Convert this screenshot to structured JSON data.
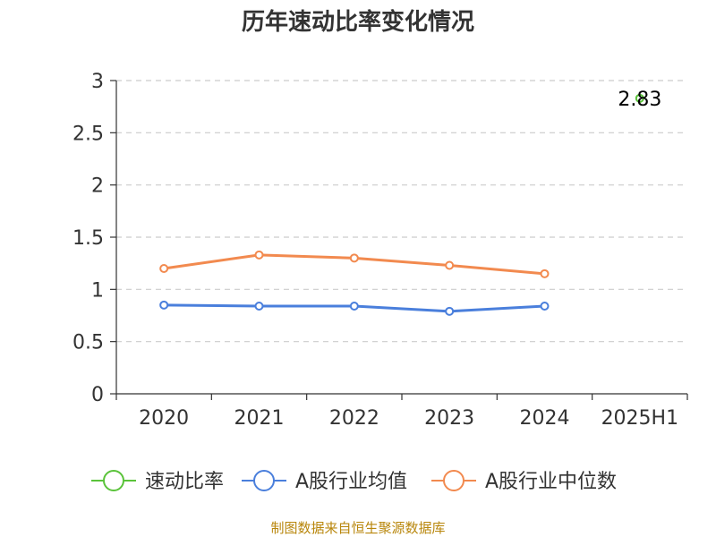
{
  "chart_data": {
    "type": "line",
    "title": "历年速动比率变化情况",
    "categories": [
      "2020",
      "2021",
      "2022",
      "2023",
      "2024",
      "2025H1"
    ],
    "ylim": [
      0,
      3
    ],
    "yticks": [
      "0",
      "0.5",
      "1",
      "1.5",
      "2",
      "2.5",
      "3"
    ],
    "grid": true,
    "legend_position": "bottom",
    "series": [
      {
        "name": "速动比率",
        "color": "#5ac33a",
        "values": [
          null,
          null,
          null,
          null,
          null,
          2.83
        ],
        "labels": [
          "",
          "",
          "",
          "",
          "",
          "2.83"
        ]
      },
      {
        "name": "A股行业均值",
        "color": "#4a7fdc",
        "values": [
          0.85,
          0.84,
          0.84,
          0.79,
          0.84,
          null
        ]
      },
      {
        "name": "A股行业中位数",
        "color": "#f28a4f",
        "values": [
          1.2,
          1.33,
          1.3,
          1.23,
          1.15,
          null
        ]
      }
    ]
  },
  "source_text": "制图数据来自恒生聚源数据库"
}
